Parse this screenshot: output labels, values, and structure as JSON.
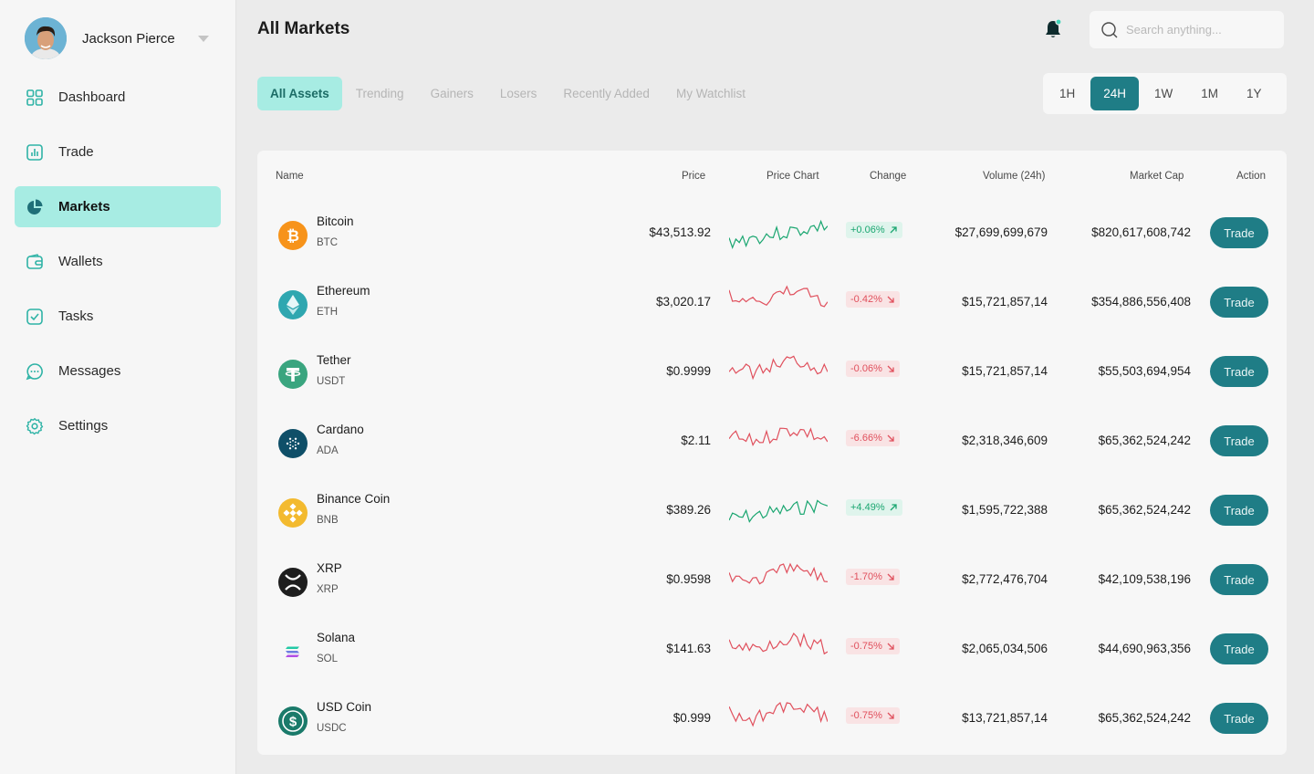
{
  "profile": {
    "name": "Jackson Pierce"
  },
  "nav": [
    {
      "id": "dashboard",
      "label": "Dashboard",
      "icon": "grid-icon",
      "active": false
    },
    {
      "id": "trade",
      "label": "Trade",
      "icon": "chart-bar-icon",
      "active": false
    },
    {
      "id": "markets",
      "label": "Markets",
      "icon": "pie-chart-icon",
      "active": true
    },
    {
      "id": "wallets",
      "label": "Wallets",
      "icon": "wallet-icon",
      "active": false
    },
    {
      "id": "tasks",
      "label": "Tasks",
      "icon": "checkbox-icon",
      "active": false
    },
    {
      "id": "messages",
      "label": "Messages",
      "icon": "chat-bubble-icon",
      "active": false
    },
    {
      "id": "settings",
      "label": "Settings",
      "icon": "gear-icon",
      "active": false
    }
  ],
  "header": {
    "title": "All Markets",
    "search_placeholder": "Search anything..."
  },
  "tabs": [
    {
      "label": "All Assets",
      "active": true
    },
    {
      "label": "Trending",
      "active": false
    },
    {
      "label": "Gainers",
      "active": false
    },
    {
      "label": "Losers",
      "active": false
    },
    {
      "label": "Recently Added",
      "active": false
    },
    {
      "label": "My Watchlist",
      "active": false
    }
  ],
  "periods": [
    {
      "label": "1H",
      "active": false
    },
    {
      "label": "24H",
      "active": true
    },
    {
      "label": "1W",
      "active": false
    },
    {
      "label": "1M",
      "active": false
    },
    {
      "label": "1Y",
      "active": false
    }
  ],
  "table": {
    "columns": {
      "name": "Name",
      "price": "Price",
      "chart": "Price Chart",
      "change": "Change",
      "volume": "Volume (24h)",
      "mcap": "Market Cap",
      "action": "Action"
    },
    "trade_label": "Trade",
    "rows": [
      {
        "name": "Bitcoin",
        "symbol": "BTC",
        "price": "$43,513.92",
        "change": "+0.06%",
        "trend": "up",
        "volume": "$27,699,699,679",
        "mcap": "$820,617,608,742",
        "icon": "bitcoin-icon",
        "color": "#f7931a"
      },
      {
        "name": "Ethereum",
        "symbol": "ETH",
        "price": "$3,020.17",
        "change": "-0.42%",
        "trend": "down",
        "volume": "$15,721,857,14",
        "mcap": "$354,886,556,408",
        "icon": "ethereum-icon",
        "color": "#2fa7b0"
      },
      {
        "name": "Tether",
        "symbol": "USDT",
        "price": "$0.9999",
        "change": "-0.06%",
        "trend": "down",
        "volume": "$15,721,857,14",
        "mcap": "$55,503,694,954",
        "icon": "tether-icon",
        "color": "#3aa57f"
      },
      {
        "name": "Cardano",
        "symbol": "ADA",
        "price": "$2.11",
        "change": "-6.66%",
        "trend": "down",
        "volume": "$2,318,346,609",
        "mcap": "$65,362,524,242",
        "icon": "cardano-icon",
        "color": "#0f4f68"
      },
      {
        "name": "Binance Coin",
        "symbol": "BNB",
        "price": "$389.26",
        "change": "+4.49%",
        "trend": "up",
        "volume": "$1,595,722,388",
        "mcap": "$65,362,524,242",
        "icon": "binance-icon",
        "color": "#f3ba2f"
      },
      {
        "name": "XRP",
        "symbol": "XRP",
        "price": "$0.9598",
        "change": "-1.70%",
        "trend": "down",
        "volume": "$2,772,476,704",
        "mcap": "$42,109,538,196",
        "icon": "xrp-icon",
        "color": "#1e1e1e"
      },
      {
        "name": "Solana",
        "symbol": "SOL",
        "price": "$141.63",
        "change": "-0.75%",
        "trend": "down",
        "volume": "$2,065,034,506",
        "mcap": "$44,690,963,356",
        "icon": "solana-icon",
        "color": "#f7f7f7"
      },
      {
        "name": "USD Coin",
        "symbol": "USDC",
        "price": "$0.999",
        "change": "-0.75%",
        "trend": "down",
        "volume": "$13,721,857,14",
        "mcap": "$65,362,524,242",
        "icon": "usd-coin-icon",
        "color": "#1a7a6a"
      }
    ]
  },
  "colors": {
    "accent": "#1f7d86",
    "accent_light": "#a7ece3",
    "up": "#1aa670",
    "down": "#e0505d"
  }
}
